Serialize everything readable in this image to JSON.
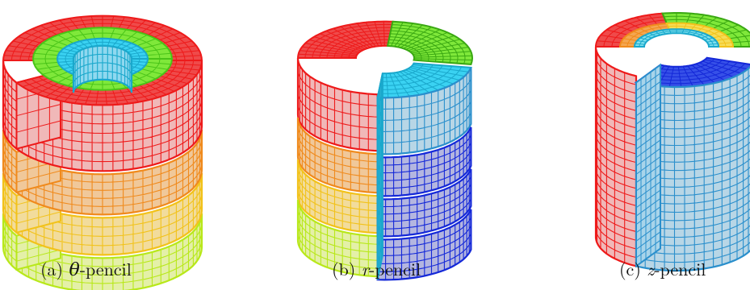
{
  "figure": {
    "panels": [
      {
        "key": "theta",
        "caption_prefix": "(a) ",
        "caption_symbol": "θ",
        "caption_suffix": "-pencil"
      },
      {
        "key": "r",
        "caption_prefix": "(b) ",
        "caption_symbol": "r",
        "caption_suffix": "-pencil"
      },
      {
        "key": "z",
        "caption_prefix": "(c) ",
        "caption_symbol": "z",
        "caption_suffix": "-pencil"
      }
    ],
    "colors": {
      "red": "#ee1a1a",
      "red_fill": "#f0b8b8",
      "green": "#5ce21a",
      "green_fill": "#7fe83a",
      "cyan": "#3ad2f2",
      "cyan_fill": "#b8d6e6",
      "blue": "#1428d8",
      "blue_fill": "#b4b6e0",
      "orange": "#f08a1c",
      "orange_fill": "#f0c89a",
      "yellow": "#f2c21a",
      "yellow_fill": "#f2dc9c",
      "lime": "#b8e81a",
      "lime_fill": "#e4f0a8",
      "grid_line": "#555555"
    }
  }
}
